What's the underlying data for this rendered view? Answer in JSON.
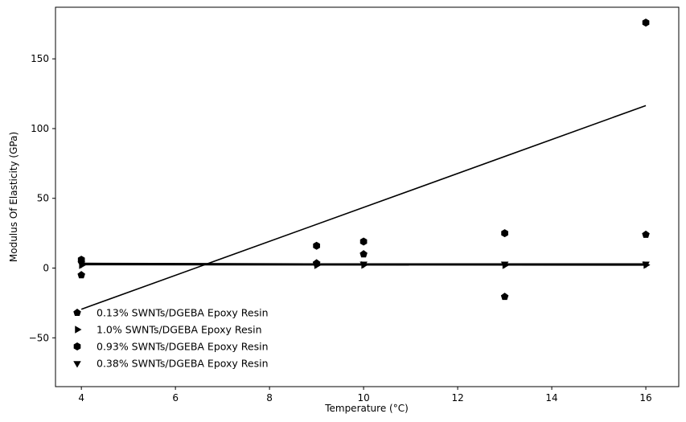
{
  "chart_data": {
    "type": "scatter",
    "title": "",
    "xlabel": "Temperature (°C)",
    "ylabel": "Modulus Of Elasticity (GPa)",
    "xlim": [
      3.45,
      16.7
    ],
    "ylim": [
      -85,
      187
    ],
    "x_ticks": [
      4,
      6,
      8,
      10,
      12,
      14,
      16
    ],
    "x_tick_labels": [
      "4",
      "6",
      "8",
      "10",
      "12",
      "14",
      "16"
    ],
    "y_ticks": [
      -50,
      0,
      50,
      100,
      150
    ],
    "y_tick_labels": [
      "−50",
      "0",
      "50",
      "100",
      "150"
    ],
    "grid": false,
    "legend_position": "lower-left",
    "series": [
      {
        "name": "0.13% SWNTs/DGEBA Epoxy Resin",
        "marker": "pentagon",
        "x": [
          4,
          9,
          10,
          13,
          16
        ],
        "y": [
          -5,
          3.5,
          10,
          -20.5,
          24
        ],
        "fit": [
          3.4,
          2.4
        ]
      },
      {
        "name": "1.0% SWNTs/DGEBA Epoxy Resin",
        "marker": "triangle-right",
        "x": [
          4,
          9,
          10,
          13,
          16
        ],
        "y": [
          2,
          2,
          2.2,
          2,
          2.2
        ],
        "fit": [
          2.4,
          2.1
        ]
      },
      {
        "name": "0.93% SWNTs/DGEBA Epoxy Resin",
        "marker": "hexagon",
        "x": [
          4,
          9,
          10,
          13,
          16
        ],
        "y": [
          6,
          16,
          19,
          25,
          176
        ],
        "fit": [
          -29.5,
          116.5
        ]
      },
      {
        "name": "0.38% SWNTs/DGEBA Epoxy Resin",
        "marker": "triangle-down",
        "x": [
          4,
          9,
          10,
          13,
          16
        ],
        "y": [
          3,
          3,
          3,
          3,
          3
        ],
        "fit": [
          3,
          3
        ]
      }
    ]
  }
}
